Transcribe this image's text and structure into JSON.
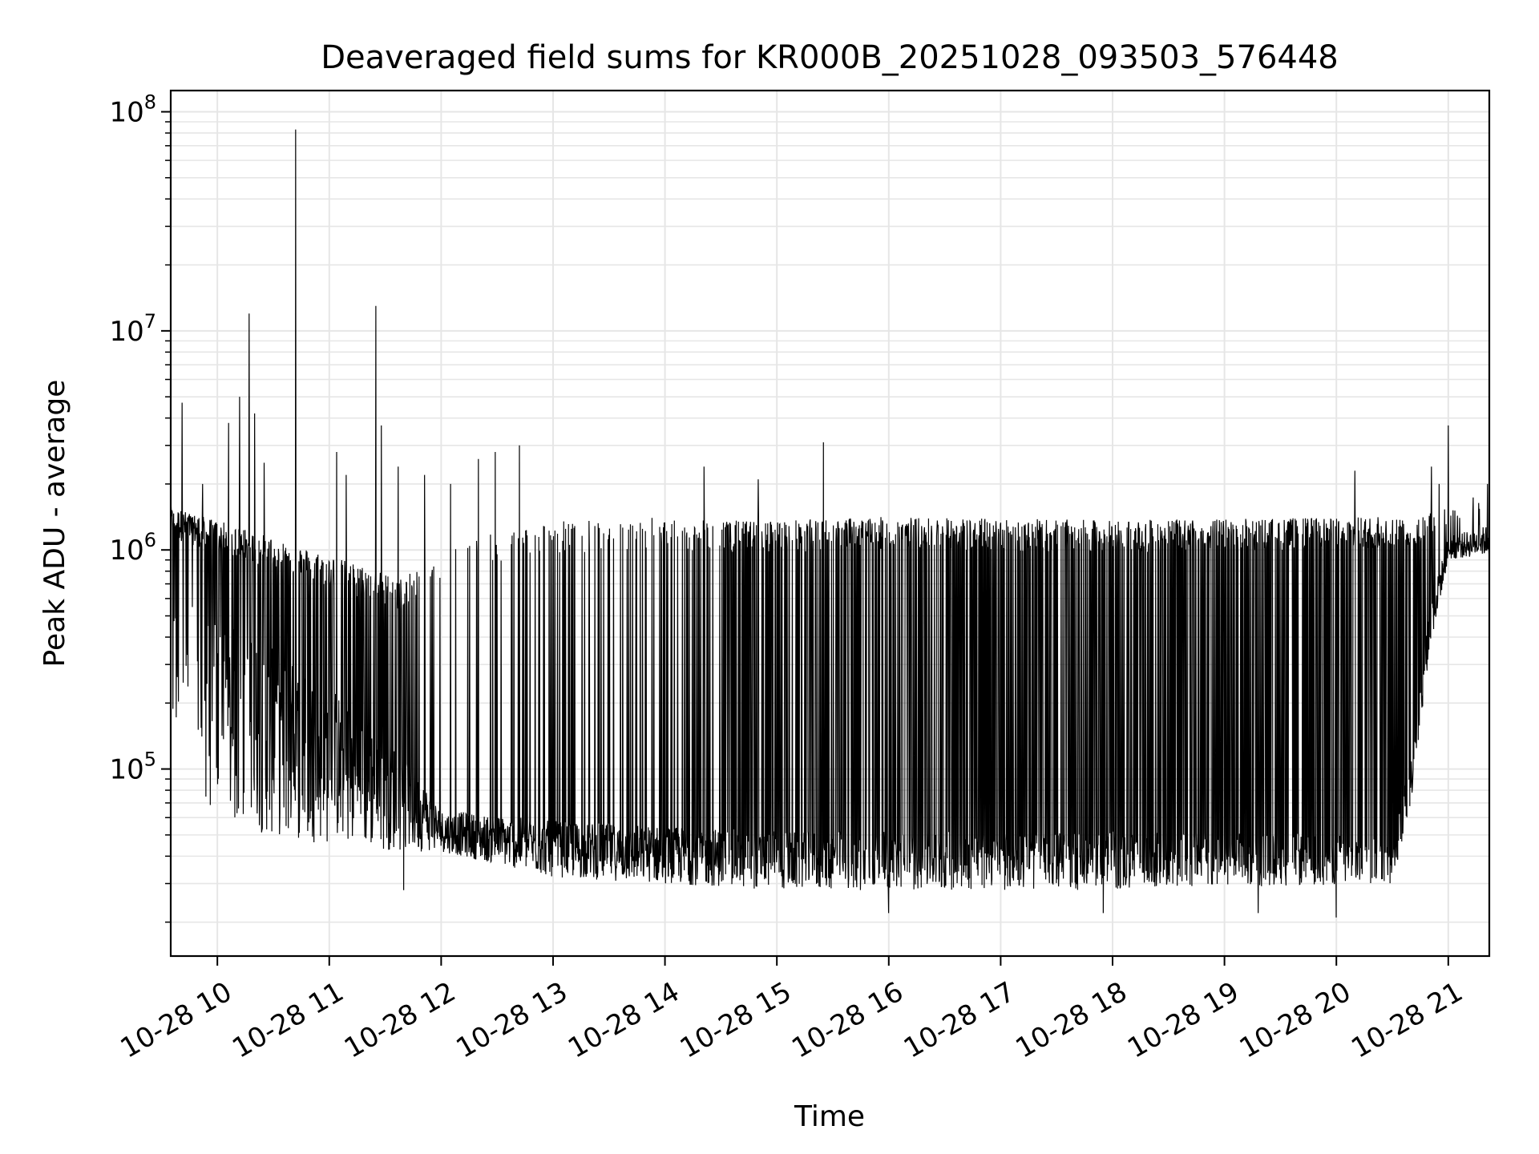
{
  "chart_data": {
    "type": "line",
    "title": "Deaveraged field sums for KR000B_20251028_093503_576448",
    "xlabel": "Time",
    "ylabel": "Peak ADU - average",
    "xscale": "time",
    "yscale": "log",
    "xlim": [
      "2025-10-28 09:35",
      "2025-10-28 21:22"
    ],
    "ylim": [
      14000,
      125000000
    ],
    "grid": {
      "major": true,
      "minor_y": true,
      "color": "#e6e6e6"
    },
    "line_color": "#000000",
    "xtick_labels": [
      "10-28 10",
      "10-28 11",
      "10-28 12",
      "10-28 13",
      "10-28 14",
      "10-28 15",
      "10-28 16",
      "10-28 17",
      "10-28 18",
      "10-28 19",
      "10-28 20",
      "10-28 21"
    ],
    "xtick_hours": [
      10,
      11,
      12,
      13,
      14,
      15,
      16,
      17,
      18,
      19,
      20,
      21
    ],
    "ytick_labels": [
      {
        "base": "10",
        "exp": "5"
      },
      {
        "base": "10",
        "exp": "6"
      },
      {
        "base": "10",
        "exp": "7"
      },
      {
        "base": "10",
        "exp": "8"
      }
    ],
    "ytick_values": [
      100000,
      1000000,
      10000000,
      100000000
    ],
    "series": [
      {
        "name": "",
        "envelope": [
          {
            "x": "2025-10-28 09:35",
            "base_low": 150000,
            "base_high": 600000,
            "spike_top": 1500000,
            "spike_rate": 0.8
          },
          {
            "x": "2025-10-28 10:00",
            "base_low": 55000,
            "base_high": 500000,
            "spike_top": 1300000,
            "spike_rate": 0.6
          },
          {
            "x": "2025-10-28 11:00",
            "base_low": 45000,
            "base_high": 250000,
            "spike_top": 900000,
            "spike_rate": 0.4
          },
          {
            "x": "2025-10-28 11:40",
            "base_low": 42000,
            "base_high": 120000,
            "spike_top": 700000,
            "spike_rate": 0.35
          },
          {
            "x": "2025-10-28 12:00",
            "base_low": 42000,
            "base_high": 65000,
            "spike_top": 1000000,
            "spike_rate": 0.06
          },
          {
            "x": "2025-10-28 13:00",
            "base_low": 32000,
            "base_high": 58000,
            "spike_top": 1300000,
            "spike_rate": 0.12
          },
          {
            "x": "2025-10-28 14:00",
            "base_low": 30000,
            "base_high": 55000,
            "spike_top": 1300000,
            "spike_rate": 0.2
          },
          {
            "x": "2025-10-28 15:00",
            "base_low": 28000,
            "base_high": 52000,
            "spike_top": 1300000,
            "spike_rate": 0.38
          },
          {
            "x": "2025-10-28 16:00",
            "base_low": 28000,
            "base_high": 52000,
            "spike_top": 1350000,
            "spike_rate": 0.42
          },
          {
            "x": "2025-10-28 18:00",
            "base_low": 28000,
            "base_high": 52000,
            "spike_top": 1300000,
            "spike_rate": 0.42
          },
          {
            "x": "2025-10-28 20:30",
            "base_low": 30000,
            "base_high": 50000,
            "spike_top": 1350000,
            "spike_rate": 0.45
          },
          {
            "x": "2025-10-28 20:40",
            "base_low": 70000,
            "base_high": 110000,
            "spike_top": 1300000,
            "spike_rate": 0.4
          },
          {
            "x": "2025-10-28 20:50",
            "base_low": 350000,
            "base_high": 550000,
            "spike_top": 1500000,
            "spike_rate": 0.3
          },
          {
            "x": "2025-10-28 21:00",
            "base_low": 900000,
            "base_high": 1150000,
            "spike_top": 1500000,
            "spike_rate": 0.1
          },
          {
            "x": "2025-10-28 21:22",
            "base_low": 950000,
            "base_high": 1300000,
            "spike_top": 1800000,
            "spike_rate": 0.1
          }
        ],
        "peaks": [
          {
            "x": "2025-10-28 09:41",
            "y": 4700000
          },
          {
            "x": "2025-10-28 09:52",
            "y": 2000000
          },
          {
            "x": "2025-10-28 10:06",
            "y": 3800000
          },
          {
            "x": "2025-10-28 10:12",
            "y": 5000000
          },
          {
            "x": "2025-10-28 10:17",
            "y": 12000000
          },
          {
            "x": "2025-10-28 10:20",
            "y": 4200000
          },
          {
            "x": "2025-10-28 10:25",
            "y": 2500000
          },
          {
            "x": "2025-10-28 10:42",
            "y": 83000000
          },
          {
            "x": "2025-10-28 11:04",
            "y": 2800000
          },
          {
            "x": "2025-10-28 11:09",
            "y": 2200000
          },
          {
            "x": "2025-10-28 11:25",
            "y": 13000000
          },
          {
            "x": "2025-10-28 11:28",
            "y": 3700000
          },
          {
            "x": "2025-10-28 11:37",
            "y": 2400000
          },
          {
            "x": "2025-10-28 11:51",
            "y": 2200000
          },
          {
            "x": "2025-10-28 12:05",
            "y": 2000000
          },
          {
            "x": "2025-10-28 12:20",
            "y": 2600000
          },
          {
            "x": "2025-10-28 12:29",
            "y": 2800000
          },
          {
            "x": "2025-10-28 12:42",
            "y": 3000000
          },
          {
            "x": "2025-10-28 13:53",
            "y": 1400000
          },
          {
            "x": "2025-10-28 14:21",
            "y": 2400000
          },
          {
            "x": "2025-10-28 14:50",
            "y": 2100000
          },
          {
            "x": "2025-10-28 15:25",
            "y": 3100000
          },
          {
            "x": "2025-10-28 20:10",
            "y": 2300000
          },
          {
            "x": "2025-10-28 20:51",
            "y": 2400000
          },
          {
            "x": "2025-10-28 20:55",
            "y": 2000000
          },
          {
            "x": "2025-10-28 21:00",
            "y": 3700000
          },
          {
            "x": "2025-10-28 21:21",
            "y": 2000000
          }
        ],
        "troughs": [
          {
            "x": "2025-10-28 11:40",
            "y": 28000
          },
          {
            "x": "2025-10-28 16:00",
            "y": 22000
          },
          {
            "x": "2025-10-28 17:55",
            "y": 22000
          },
          {
            "x": "2025-10-28 19:18",
            "y": 22000
          },
          {
            "x": "2025-10-28 20:00",
            "y": 21000
          }
        ]
      }
    ]
  }
}
